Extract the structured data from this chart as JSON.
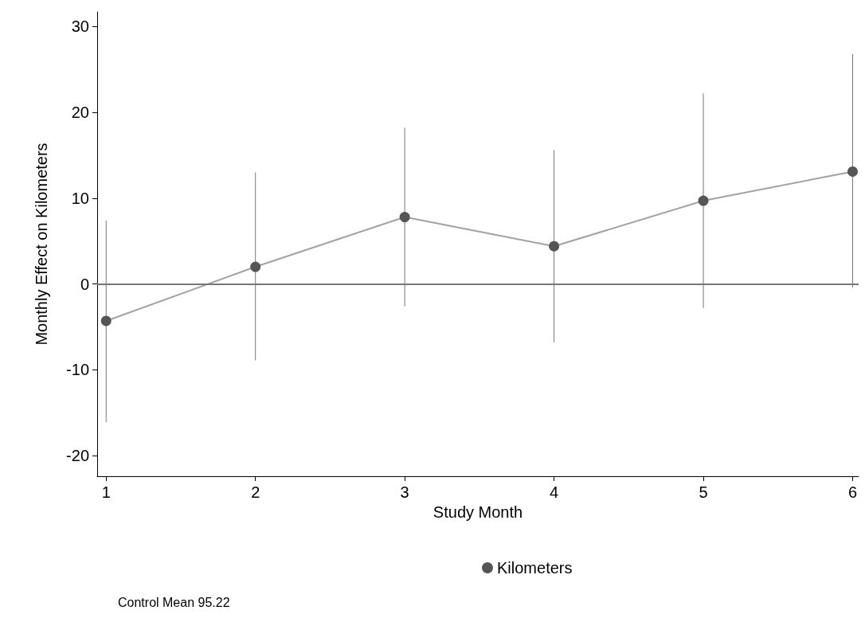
{
  "chart_data": {
    "type": "line",
    "xlabel": "Study Month",
    "ylabel": "Monthly Effect on Kilometers",
    "x": [
      1,
      2,
      3,
      4,
      5,
      6
    ],
    "series": [
      {
        "name": "Kilometers",
        "color": "#555555",
        "marker": "circle",
        "values": [
          -4.3,
          2.0,
          7.8,
          4.4,
          9.7,
          13.1
        ],
        "errors": [
          [
            -16.1,
            7.4
          ],
          [
            -8.9,
            13.0
          ],
          [
            -2.6,
            18.2
          ],
          [
            -6.8,
            15.6
          ],
          [
            -2.8,
            22.2
          ],
          [
            -0.4,
            26.8
          ]
        ]
      }
    ],
    "xlim": [
      0.94,
      6.04
    ],
    "xticks": [
      1,
      2,
      3,
      4,
      5,
      6
    ],
    "ylim": [
      -22.4,
      31.7
    ],
    "yticks": [
      -20,
      -10,
      0,
      10,
      20,
      30
    ],
    "ref_lines": [
      {
        "axis": "y",
        "value": 0,
        "color": "#777777"
      }
    ],
    "grid": false,
    "legend": "bottom",
    "annotations": [
      "Control Mean 95.22"
    ]
  }
}
